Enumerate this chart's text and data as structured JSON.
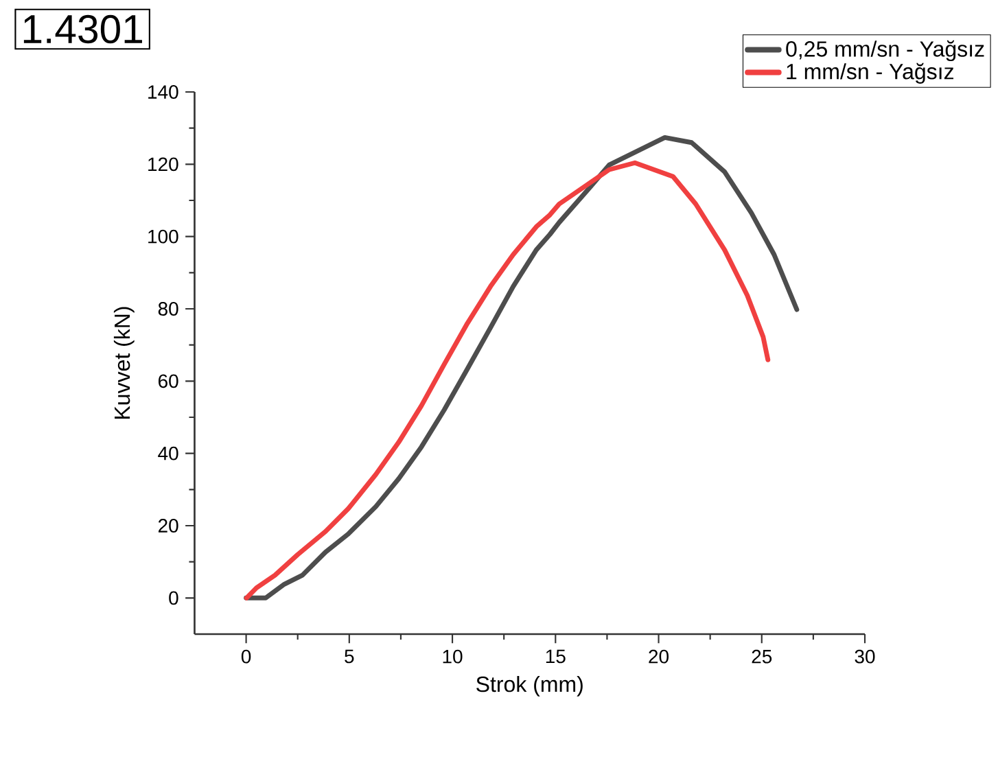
{
  "chart_data": {
    "type": "line",
    "title": "1.4301",
    "xlabel": "Strok (mm)",
    "ylabel": "Kuvvet (kN)",
    "xlim": [
      -2.5,
      30
    ],
    "ylim": [
      -10,
      140
    ],
    "xticks": [
      0,
      5,
      10,
      15,
      20,
      25,
      30
    ],
    "yticks": [
      0,
      20,
      40,
      60,
      80,
      100,
      120,
      140
    ],
    "grid": false,
    "legend": "top right",
    "marker": "none",
    "line_style": "solid",
    "series": [
      {
        "name": "0,25 mm/sn - Yağsız",
        "color": "#4d4d4d",
        "x": [
          0,
          0.95,
          1.85,
          2.73,
          3.85,
          4.95,
          6.29,
          7.4,
          8.5,
          9.6,
          10.73,
          11.85,
          12.95,
          14.07,
          14.73,
          15.18,
          16.73,
          17.6,
          20.3,
          21.6,
          23.2,
          24.5,
          25.6,
          26.7
        ],
        "values": [
          0,
          0,
          3.8,
          6.3,
          12.7,
          17.7,
          25.3,
          33,
          41.8,
          52,
          63.4,
          74.8,
          86.2,
          96.3,
          100.6,
          103.9,
          114,
          119.8,
          127.4,
          126,
          117.9,
          106.5,
          95,
          79.8
        ]
      },
      {
        "name": "1 mm/sn - Yağsız",
        "color": "#f04040",
        "x": [
          0.02,
          0.5,
          1.4,
          2.5,
          3.85,
          4.95,
          6.29,
          7.4,
          8.5,
          9.6,
          10.73,
          11.85,
          12.95,
          14.07,
          14.73,
          15.18,
          17.6,
          18.85,
          20.7,
          21.8,
          23.2,
          24.3,
          25.07,
          25.3
        ],
        "values": [
          0,
          2.8,
          6.3,
          12,
          18.4,
          24.7,
          34.2,
          43.1,
          53.2,
          64.6,
          76,
          86.2,
          95,
          102.7,
          106,
          109,
          118.5,
          120.4,
          116.6,
          109,
          96.3,
          83.7,
          72.2,
          65.9
        ]
      }
    ]
  }
}
